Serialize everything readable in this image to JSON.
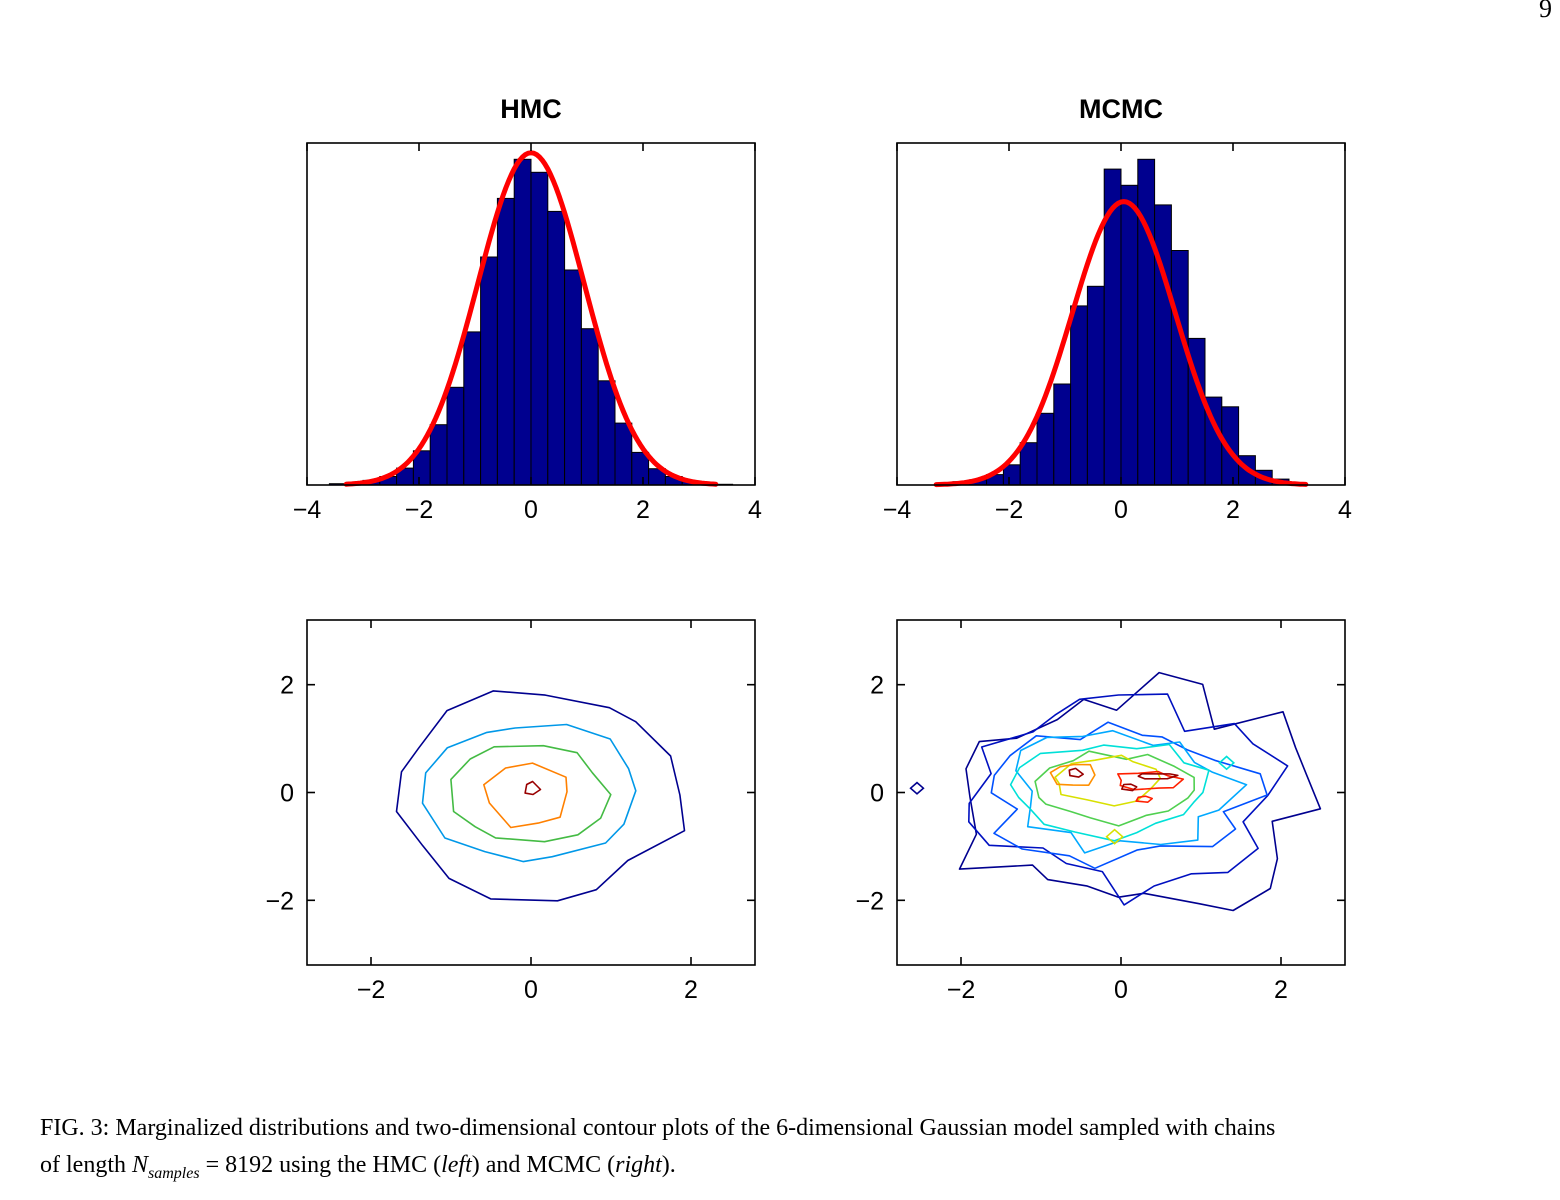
{
  "page_number": "9",
  "caption": {
    "label": "FIG. 3:",
    "line1": "Marginalized distributions and two-dimensional contour plots of the 6-dimensional Gaussian model sampled with chains",
    "line2": {
      "pre": "of length ",
      "math_var": "N",
      "math_sub": "samples",
      "eq": " = 8192 using the HMC (",
      "italic1": "left",
      "mid": ") and MCMC (",
      "italic2": "right",
      "post": ")."
    }
  },
  "chart_data": [
    {
      "id": "hmc-histogram",
      "type": "bar",
      "title": "HMC",
      "xlabel": "",
      "ylabel": "",
      "grid": false,
      "legend": "none",
      "xlim": [
        -4,
        4
      ],
      "ylim": [
        0,
        1.05
      ],
      "xticks": [
        -4,
        -2,
        0,
        2,
        4
      ],
      "bin_width": 0.3,
      "bar_color": "#00008f",
      "bar_edge": "#000000",
      "bins": {
        "centers": [
          -3.45,
          -3.15,
          -2.85,
          -2.55,
          -2.25,
          -1.95,
          -1.65,
          -1.35,
          -1.05,
          -0.75,
          -0.45,
          -0.15,
          0.15,
          0.45,
          0.75,
          1.05,
          1.35,
          1.65,
          1.95,
          2.25,
          2.55,
          2.85,
          3.15,
          3.45
        ],
        "heights": [
          0.004,
          0.008,
          0.014,
          0.026,
          0.052,
          0.105,
          0.185,
          0.3,
          0.47,
          0.7,
          0.88,
          1.0,
          0.96,
          0.84,
          0.66,
          0.48,
          0.32,
          0.19,
          0.1,
          0.05,
          0.026,
          0.012,
          0.005,
          0.002
        ]
      },
      "curve": {
        "label": "gaussian-fit",
        "color": "#ff0000",
        "mu": 0.0,
        "sigma": 0.95,
        "amplitude": 1.02,
        "width": 5
      }
    },
    {
      "id": "mcmc-histogram",
      "type": "bar",
      "title": "MCMC",
      "xlabel": "",
      "ylabel": "",
      "grid": false,
      "legend": "none",
      "xlim": [
        -4,
        4
      ],
      "ylim": [
        0,
        1.05
      ],
      "xticks": [
        -4,
        -2,
        0,
        2,
        4
      ],
      "bin_width": 0.3,
      "bar_color": "#00008f",
      "bar_edge": "#000000",
      "bins": {
        "centers": [
          -3.15,
          -2.85,
          -2.55,
          -2.25,
          -1.95,
          -1.65,
          -1.35,
          -1.05,
          -0.75,
          -0.45,
          -0.15,
          0.15,
          0.45,
          0.75,
          1.05,
          1.35,
          1.65,
          1.95,
          2.25,
          2.55,
          2.85,
          3.15
        ],
        "heights": [
          0.005,
          0.01,
          0.016,
          0.032,
          0.062,
          0.13,
          0.22,
          0.31,
          0.55,
          0.61,
          0.97,
          0.92,
          1.0,
          0.86,
          0.72,
          0.45,
          0.27,
          0.24,
          0.09,
          0.045,
          0.018,
          0.007
        ]
      },
      "curve": {
        "label": "gaussian-fit",
        "color": "#ff0000",
        "mu": 0.05,
        "sigma": 0.92,
        "amplitude": 0.87,
        "width": 5
      }
    },
    {
      "id": "hmc-contour",
      "type": "contour",
      "title": "",
      "xlabel": "",
      "ylabel": "",
      "grid": false,
      "legend": "none",
      "xlim": [
        -2.8,
        2.8
      ],
      "ylim": [
        -3.2,
        3.2
      ],
      "xticks": [
        -2,
        0,
        2
      ],
      "yticks": [
        -2,
        0,
        2
      ],
      "levels": [
        {
          "color": "#00008f",
          "cx": 0.05,
          "cy": -0.05,
          "rx": 1.8,
          "ry": 1.88,
          "noise": 0.1,
          "n": 17,
          "seed": 11
        },
        {
          "color": "#0098e8",
          "cx": 0.0,
          "cy": 0.0,
          "rx": 1.36,
          "ry": 1.3,
          "noise": 0.07,
          "n": 15,
          "seed": 22
        },
        {
          "color": "#44bb44",
          "cx": -0.02,
          "cy": -0.05,
          "rx": 0.98,
          "ry": 0.92,
          "noise": 0.08,
          "n": 13,
          "seed": 33
        },
        {
          "color": "#ff8000",
          "cx": -0.05,
          "cy": -0.05,
          "rx": 0.54,
          "ry": 0.6,
          "noise": 0.1,
          "n": 9,
          "seed": 44
        },
        {
          "color": "#990000",
          "cx": 0.0,
          "cy": 0.06,
          "rx": 0.1,
          "ry": 0.13,
          "noise": 0.25,
          "n": 5,
          "seed": 55
        }
      ],
      "extras": []
    },
    {
      "id": "mcmc-contour",
      "type": "contour",
      "title": "",
      "xlabel": "",
      "ylabel": "",
      "grid": false,
      "legend": "none",
      "xlim": [
        -2.8,
        2.8
      ],
      "ylim": [
        -3.2,
        3.2
      ],
      "xticks": [
        -2,
        0,
        2
      ],
      "yticks": [
        -2,
        0,
        2
      ],
      "levels": [
        {
          "color": "#00008f",
          "cx": 0.15,
          "cy": -0.2,
          "rx": 2.1,
          "ry": 2.1,
          "noise": 0.22,
          "n": 26,
          "seed": 101
        },
        {
          "color": "#0010c0",
          "cx": 0.05,
          "cy": -0.1,
          "rx": 1.75,
          "ry": 1.68,
          "noise": 0.22,
          "n": 24,
          "seed": 102
        },
        {
          "color": "#0050ff",
          "cx": 0.0,
          "cy": 0.0,
          "rx": 1.55,
          "ry": 1.3,
          "noise": 0.2,
          "n": 22,
          "seed": 103
        },
        {
          "color": "#00a8ff",
          "cx": 0.0,
          "cy": 0.05,
          "rx": 1.35,
          "ry": 1.05,
          "noise": 0.18,
          "n": 20,
          "seed": 104
        },
        {
          "color": "#00e0d8",
          "cx": -0.05,
          "cy": 0.05,
          "rx": 1.15,
          "ry": 0.85,
          "noise": 0.17,
          "n": 19,
          "seed": 105
        },
        {
          "color": "#50d050",
          "cx": -0.08,
          "cy": 0.08,
          "rx": 0.95,
          "ry": 0.62,
          "noise": 0.16,
          "n": 17,
          "seed": 106
        },
        {
          "color": "#d8e000",
          "cx": -0.15,
          "cy": 0.22,
          "rx": 0.68,
          "ry": 0.42,
          "noise": 0.18,
          "n": 13,
          "seed": 107
        },
        {
          "color": "#ff9000",
          "cx": -0.58,
          "cy": 0.33,
          "rx": 0.27,
          "ry": 0.21,
          "noise": 0.22,
          "n": 8,
          "seed": 108
        },
        {
          "color": "#ff2000",
          "cx": 0.32,
          "cy": 0.22,
          "rx": 0.4,
          "ry": 0.18,
          "noise": 0.25,
          "n": 10,
          "seed": 109
        },
        {
          "color": "#990000",
          "cx": -0.58,
          "cy": 0.36,
          "rx": 0.1,
          "ry": 0.08,
          "noise": 0.2,
          "n": 5,
          "seed": 110
        },
        {
          "color": "#990000",
          "cx": 0.45,
          "cy": 0.3,
          "rx": 0.24,
          "ry": 0.06,
          "noise": 0.2,
          "n": 6,
          "seed": 111
        },
        {
          "color": "#990000",
          "cx": 0.1,
          "cy": 0.1,
          "rx": 0.09,
          "ry": 0.06,
          "noise": 0.2,
          "n": 5,
          "seed": 112
        },
        {
          "color": "#ff2000",
          "cx": 0.28,
          "cy": -0.12,
          "rx": 0.1,
          "ry": 0.06,
          "noise": 0.25,
          "n": 5,
          "seed": 113
        }
      ],
      "extras": [
        {
          "color": "#00008f",
          "cx": -2.55,
          "cy": 0.08,
          "r": 0.08
        },
        {
          "color": "#d8e000",
          "cx": -0.08,
          "cy": -0.82,
          "r": 0.1
        },
        {
          "color": "#00e0d8",
          "cx": 1.32,
          "cy": 0.55,
          "r": 0.09
        }
      ]
    }
  ]
}
